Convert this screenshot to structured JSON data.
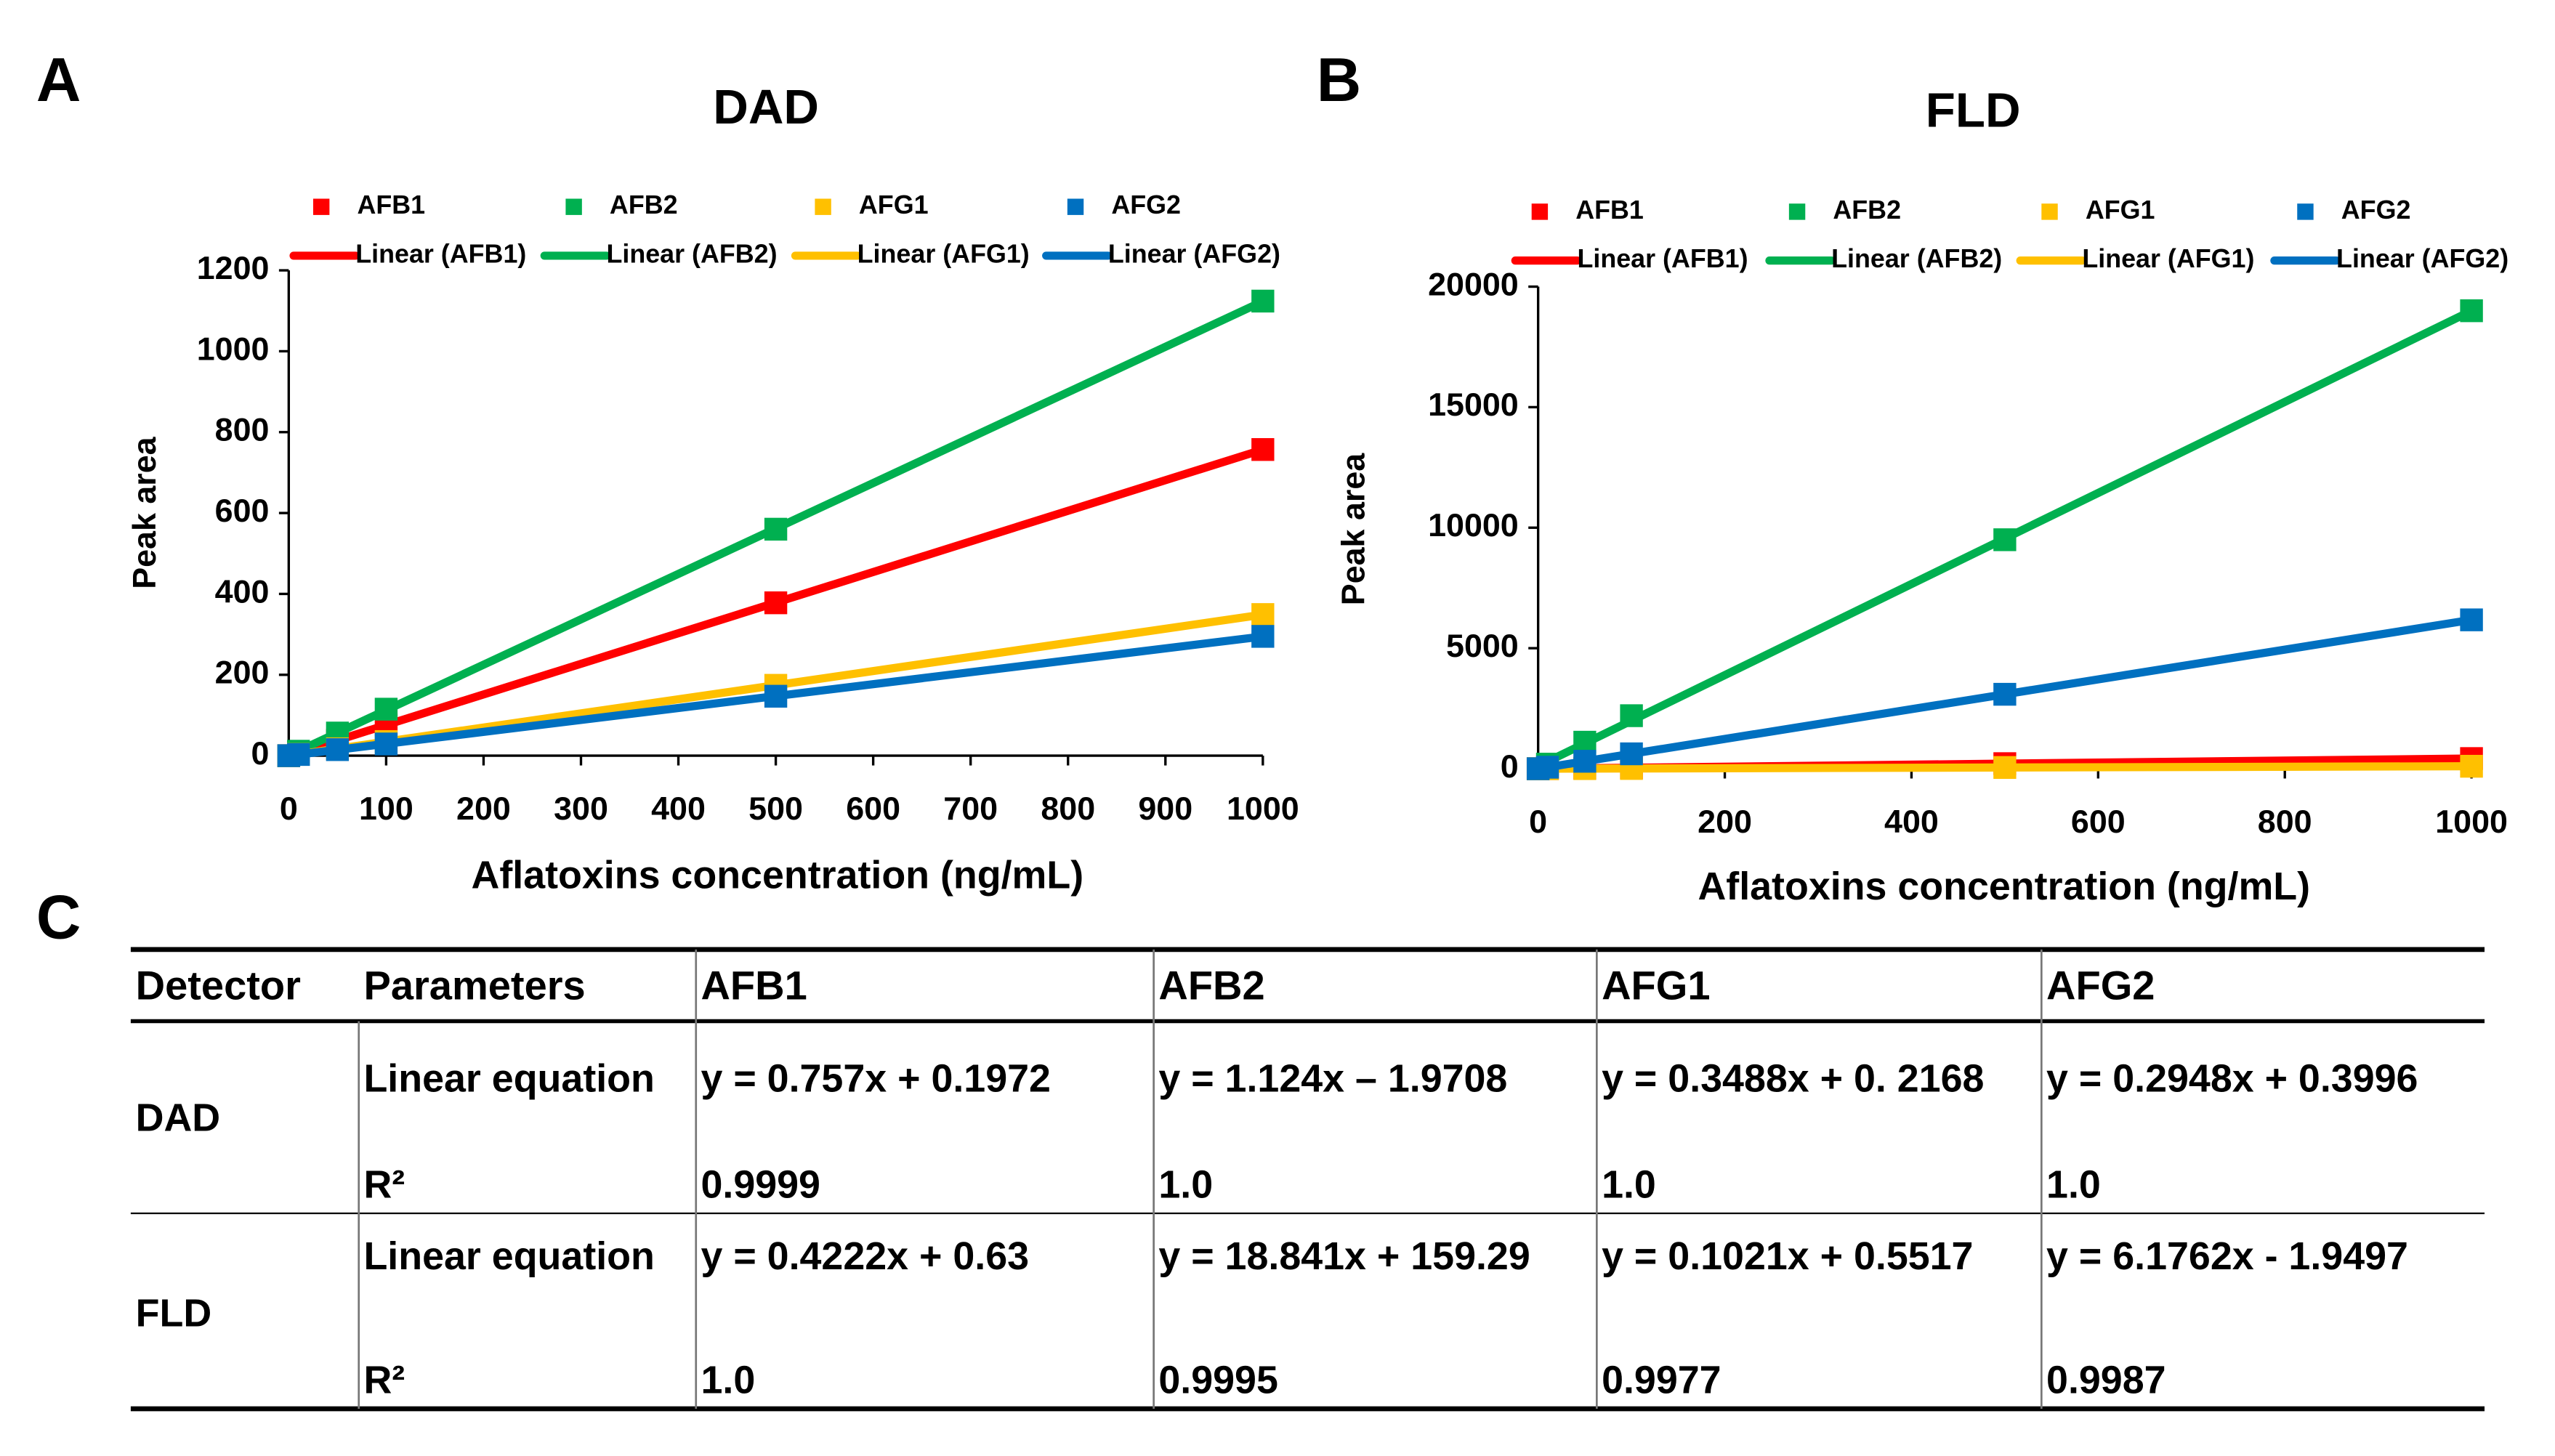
{
  "chart_data": [
    {
      "type": "scatter",
      "panel_label": "A",
      "title": "DAD",
      "x_label": "Aflatoxins concentration (ng/mL)",
      "y_label": "Peak area",
      "x": [
        0,
        10,
        50,
        100,
        500,
        1000
      ],
      "series": [
        {
          "name": "AFB1",
          "trendline": "Linear (AFB1)",
          "color": "#ff0000",
          "values": [
            0,
            8,
            38,
            76,
            378,
            757
          ]
        },
        {
          "name": "AFB2",
          "trendline": "Linear (AFB2)",
          "color": "#00b050",
          "values": [
            0,
            11,
            56,
            115,
            560,
            1124
          ]
        },
        {
          "name": "AFG1",
          "trendline": "Linear (AFG1)",
          "color": "#ffc000",
          "values": [
            0,
            3.5,
            17,
            35,
            174,
            349
          ]
        },
        {
          "name": "AFG2",
          "trendline": "Linear (AFG2)",
          "color": "#0070c0",
          "values": [
            0,
            3,
            15,
            29,
            147,
            295
          ]
        }
      ],
      "xlim": [
        0,
        1000
      ],
      "xticks": [
        0,
        100,
        200,
        300,
        400,
        500,
        600,
        700,
        800,
        900,
        1000
      ],
      "ylim": [
        0,
        1200
      ],
      "yticks": [
        0,
        200,
        400,
        600,
        800,
        1000,
        1200
      ],
      "grid": false,
      "legend": "top"
    },
    {
      "type": "scatter",
      "panel_label": "B",
      "title": "FLD",
      "x_label": "Aflatoxins concentration (ng/mL)",
      "y_label": "Peak area",
      "x": [
        0,
        10,
        50,
        100,
        500,
        1000
      ],
      "series": [
        {
          "name": "AFB1",
          "trendline": "Linear (AFB1)",
          "color": "#ff0000",
          "values": [
            0,
            4,
            21,
            42,
            211,
            422
          ]
        },
        {
          "name": "AFB2",
          "trendline": "Linear (AFB2)",
          "color": "#00b050",
          "values": [
            0,
            190,
            1100,
            2200,
            9500,
            19000
          ]
        },
        {
          "name": "AFG1",
          "trendline": "Linear (AFG1)",
          "color": "#ffc000",
          "values": [
            0,
            1,
            5,
            10,
            51,
            102
          ]
        },
        {
          "name": "AFG2",
          "trendline": "Linear (AFG2)",
          "color": "#0070c0",
          "values": [
            0,
            62,
            309,
            618,
            3088,
            6176
          ]
        }
      ],
      "xlim": [
        0,
        1000
      ],
      "xticks": [
        0,
        200,
        400,
        600,
        800,
        1000
      ],
      "ylim": [
        0,
        20000
      ],
      "yticks": [
        0,
        5000,
        10000,
        15000,
        20000
      ],
      "grid": false,
      "legend": "top"
    }
  ],
  "table": {
    "panel_label": "C",
    "header": [
      "Detector",
      "Parameters",
      "AFB1",
      "AFB2",
      "AFG1",
      "AFG2"
    ],
    "groups": [
      {
        "detector": "DAD",
        "rows": [
          [
            "Linear equation",
            "y = 0.757x  + 0.1972",
            "y = 1.124x – 1.9708",
            "y = 0.3488x + 0. 2168",
            "y = 0.2948x + 0.3996"
          ],
          [
            "R²",
            "0.9999",
            "1.0",
            "1.0",
            "1.0"
          ]
        ]
      },
      {
        "detector": "FLD",
        "rows": [
          [
            "Linear equation",
            "y = 0.4222x + 0.63",
            "y = 18.841x + 159.29",
            "y = 0.1021x + 0.5517",
            "y = 6.1762x - 1.9497"
          ],
          [
            "R²",
            "1.0",
            "0.9995",
            "0.9977",
            "0.9987"
          ]
        ]
      }
    ]
  }
}
